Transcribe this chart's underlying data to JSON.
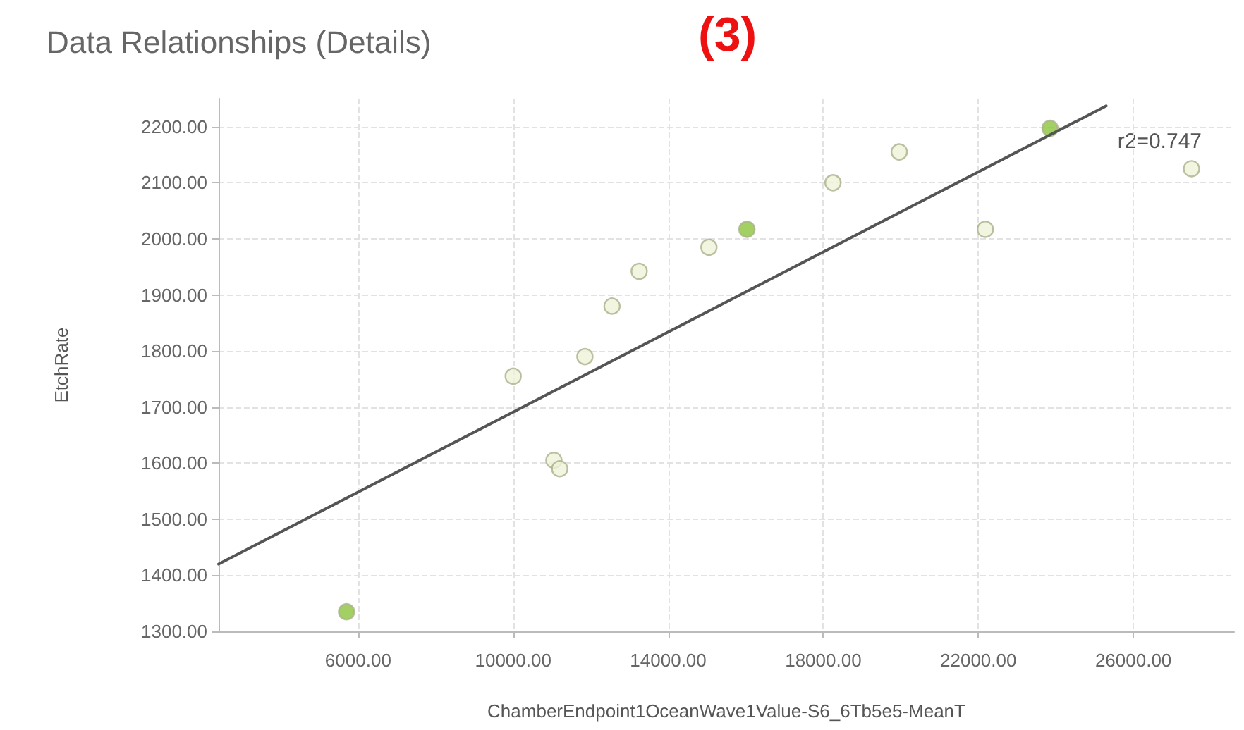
{
  "chart_data": {
    "type": "scatter",
    "title": "Data Relationships (Details)",
    "xlabel": "ChamberEndpoint1OceanWave1Value-S6_6Tb5e5-MeanT",
    "ylabel": "EtchRate",
    "annotations": [
      "r2=0.747",
      "(3)"
    ],
    "series": [
      {
        "color": "#8cc43c",
        "x": [
          5700,
          16030,
          23850
        ],
        "values": [
          1335,
          2017,
          2197
        ]
      },
      {
        "color": "#eff3d8",
        "x": [
          10000,
          11050,
          11200,
          11850,
          12550,
          13250,
          15050,
          18250,
          19960,
          22180,
          27500
        ],
        "values": [
          1755,
          1605,
          1590,
          1790,
          1880,
          1942,
          1985,
          2100,
          2155,
          2017,
          2125
        ]
      },
      {
        "type": "line",
        "color": "#555555",
        "x": [
          2400,
          25300
        ],
        "values": [
          1420,
          2237
        ],
        "marker": "none"
      }
    ],
    "marker": "circle",
    "grid": true,
    "xlim": [
      2400,
      28600
    ],
    "xticks": [
      {
        "value": 6000,
        "label": "6000.00"
      },
      {
        "value": 10000,
        "label": "10000.00"
      },
      {
        "value": 14000,
        "label": "14000.00"
      },
      {
        "value": 18000,
        "label": "18000.00"
      },
      {
        "value": 22000,
        "label": "22000.00"
      },
      {
        "value": 26000,
        "label": "26000.00"
      }
    ],
    "ylim": [
      1300,
      2250
    ],
    "yticks": [
      {
        "value": 1300,
        "label": "1300.00"
      },
      {
        "value": 1400,
        "label": "1400.00"
      },
      {
        "value": 1500,
        "label": "1500.00"
      },
      {
        "value": 1600,
        "label": "1600.00"
      },
      {
        "value": 1700,
        "label": "1700.00"
      },
      {
        "value": 1800,
        "label": "1800.00"
      },
      {
        "value": 1900,
        "label": "1900.00"
      },
      {
        "value": 2000,
        "label": "2000.00"
      },
      {
        "value": 2100,
        "label": "2100.00"
      },
      {
        "value": 2200,
        "label": "2200.00"
      }
    ]
  }
}
